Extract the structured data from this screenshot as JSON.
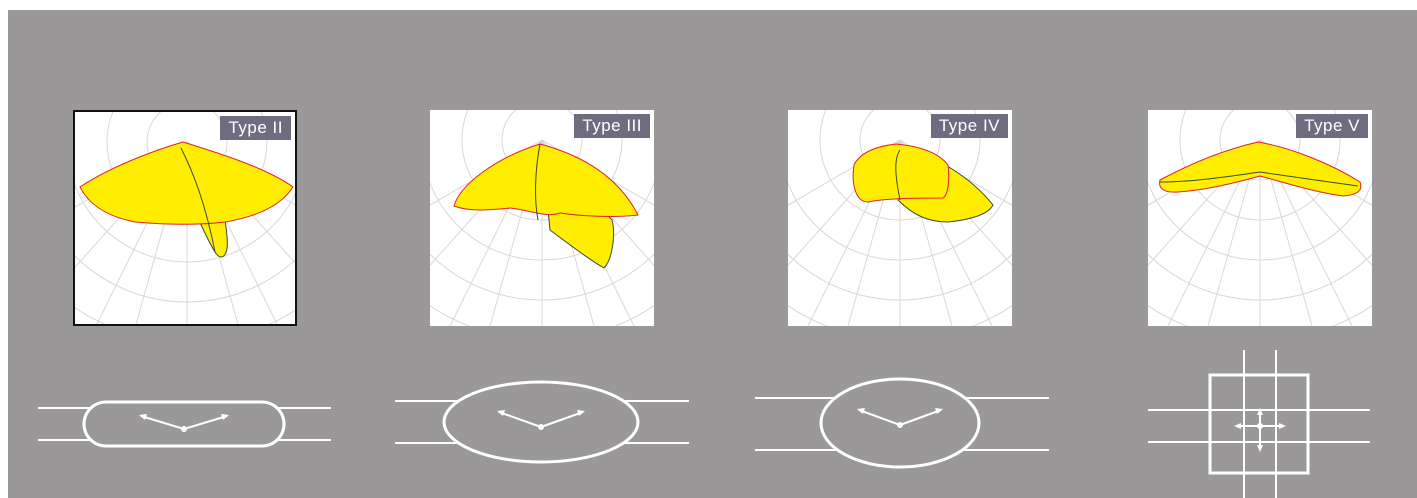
{
  "types": [
    {
      "label": "Type II",
      "selected": true,
      "pattern": "narrow-oval-icon"
    },
    {
      "label": "Type III",
      "selected": false,
      "pattern": "medium-oval-icon"
    },
    {
      "label": "Type IV",
      "selected": false,
      "pattern": "wide-oval-icon"
    },
    {
      "label": "Type V",
      "selected": false,
      "pattern": "square-cross-icon"
    }
  ],
  "colors": {
    "background": "#9a9898",
    "fill": "#ffee00",
    "outline_red": "#e0202a",
    "outline_dark": "#3a4a3a",
    "tag": "#706b80",
    "grid": "#d8d8d8"
  }
}
